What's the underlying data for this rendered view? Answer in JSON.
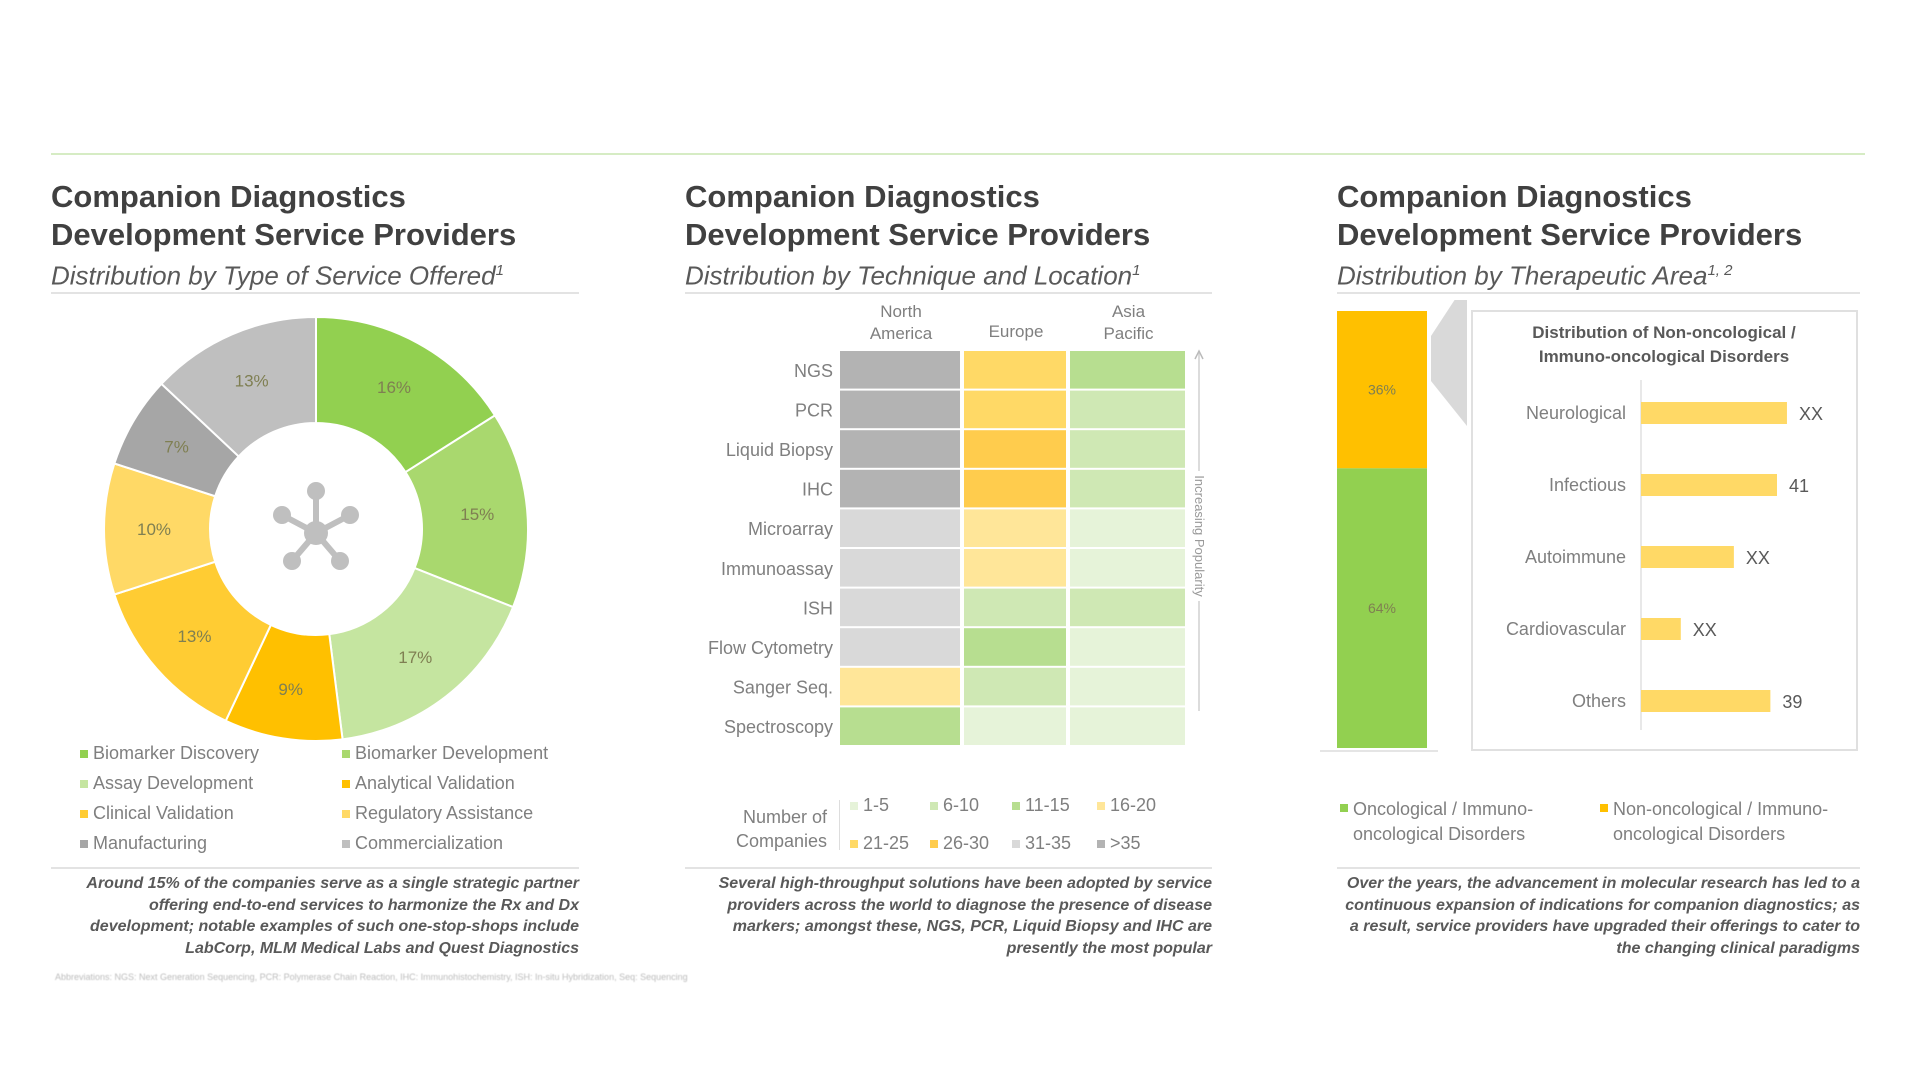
{
  "colors": {
    "green_dark": "#92D050",
    "green_mid": "#A9D86E",
    "green_light": "#C5E5A0",
    "orange": "#FFC000",
    "yellow_mid": "#FFCC33",
    "yellow_light": "#FFD966",
    "gray_dark": "#A6A6A6",
    "gray_light": "#BFBFBF"
  },
  "panels": [
    {
      "title_line1": "Companion Diagnostics",
      "title_line2": "Development Service Providers",
      "subtitle": "Distribution by Type of Service Offered",
      "subtitle_sup": "1",
      "note": "Around 15% of the companies serve as a single strategic partner offering end-to-end services to harmonize the Rx and Dx development; notable examples of such one-stop-shops include LabCorp, MLM Medical Labs and Quest Diagnostics",
      "center_icon": "molecule-network-icon"
    },
    {
      "title_line1": "Companion Diagnostics",
      "title_line2": "Development Service Providers",
      "subtitle": "Distribution by Technique and Location",
      "subtitle_sup": "1",
      "note": "Several high-throughput solutions have been adopted by service providers across the world to diagnose the presence of disease markers; amongst these, NGS, PCR, Liquid Biopsy and IHC are presently the most popular"
    },
    {
      "title_line1": "Companion Diagnostics",
      "title_line2": "Development Service Providers",
      "subtitle": "Distribution by Therapeutic Area",
      "subtitle_sup": "1, 2",
      "note": "Over the years, the advancement in molecular research has led to a continuous expansion of indications for companion diagnostics; as a result, service providers have upgraded their offerings to cater to the changing clinical paradigms"
    }
  ],
  "footnote": "Abbreviations: NGS: Next Generation Sequencing, PCR: Polymerase Chain Reaction, IHC: Immunohistochemistry, ISH: In-situ Hybridization, Seq: Sequencing",
  "chart_data": [
    {
      "type": "pie",
      "donut": true,
      "legend": "bottom",
      "categories": [
        "Biomarker Discovery",
        "Biomarker Development",
        "Assay Development",
        "Analytical Validation",
        "Clinical Validation",
        "Regulatory Assistance",
        "Manufacturing",
        "Commercialization"
      ],
      "values": [
        16,
        15,
        17,
        9,
        13,
        10,
        7,
        13
      ],
      "labels": [
        "16%",
        "15%",
        "17%",
        "9%",
        "13%",
        "10%",
        "7%",
        "13%"
      ],
      "colors": [
        "#92D050",
        "#A9D86E",
        "#C5E5A0",
        "#FFC000",
        "#FFCC33",
        "#FFD966",
        "#A6A6A6",
        "#BFBFBF"
      ]
    },
    {
      "type": "heatmap",
      "columns": [
        "North America",
        "Europe",
        "Asia Pacific"
      ],
      "column_labels": [
        [
          "North",
          "America"
        ],
        [
          "Europe"
        ],
        [
          "Asia",
          "Pacific"
        ]
      ],
      "rows": [
        "NGS",
        "PCR",
        "Liquid Biopsy",
        "IHC",
        "Microarray",
        "Immunoassay",
        "ISH",
        "Flow Cytometry",
        "Sanger Seq.",
        "Spectroscopy"
      ],
      "cells": [
        [
          ">35",
          "21-25",
          "11-15"
        ],
        [
          ">35",
          "21-25",
          "6-10"
        ],
        [
          ">35",
          "26-30",
          "6-10"
        ],
        [
          ">35",
          "26-30",
          "6-10"
        ],
        [
          "31-35",
          "16-20",
          "1-5"
        ],
        [
          "31-35",
          "16-20",
          "1-5"
        ],
        [
          "31-35",
          "6-10",
          "6-10"
        ],
        [
          "31-35",
          "11-15",
          "1-5"
        ],
        [
          "16-20",
          "6-10",
          "1-5"
        ],
        [
          "11-15",
          "1-5",
          "1-5"
        ]
      ],
      "arrow_label": "Increasing Popularity",
      "legend_title": "Number of Companies",
      "legend": [
        {
          "label": "1-5",
          "color": "#E6F3D9"
        },
        {
          "label": "6-10",
          "color": "#CFE8B4"
        },
        {
          "label": "11-15",
          "color": "#B7DE90"
        },
        {
          "label": "16-20",
          "color": "#FFE699"
        },
        {
          "label": "21-25",
          "color": "#FFD966"
        },
        {
          "label": "26-30",
          "color": "#FFCC4D"
        },
        {
          "label": "31-35",
          "color": "#D9D9D9"
        },
        {
          "label": ">35",
          "color": "#B3B3B3"
        }
      ]
    },
    {
      "type": "bar",
      "orientation": "stacked-vertical",
      "categories": [
        "Oncological / Immuno-oncological Disorders",
        "Non-oncological / Immuno-oncological Disorders"
      ],
      "values": [
        64,
        36
      ],
      "labels": [
        "64%",
        "36%"
      ],
      "colors": [
        "#92D050",
        "#FFC000"
      ],
      "legend": "bottom"
    },
    {
      "type": "bar",
      "orientation": "horizontal",
      "title": "Distribution of Non-oncological / Immuno-oncological Disorders",
      "categories": [
        "Neurological",
        "Infectious",
        "Autoimmune",
        "Cardiovascular",
        "Others"
      ],
      "values": [
        44,
        41,
        28,
        12,
        39
      ],
      "labels": [
        "XX",
        "41",
        "XX",
        "XX",
        "39"
      ],
      "color": "#FFD966"
    }
  ]
}
